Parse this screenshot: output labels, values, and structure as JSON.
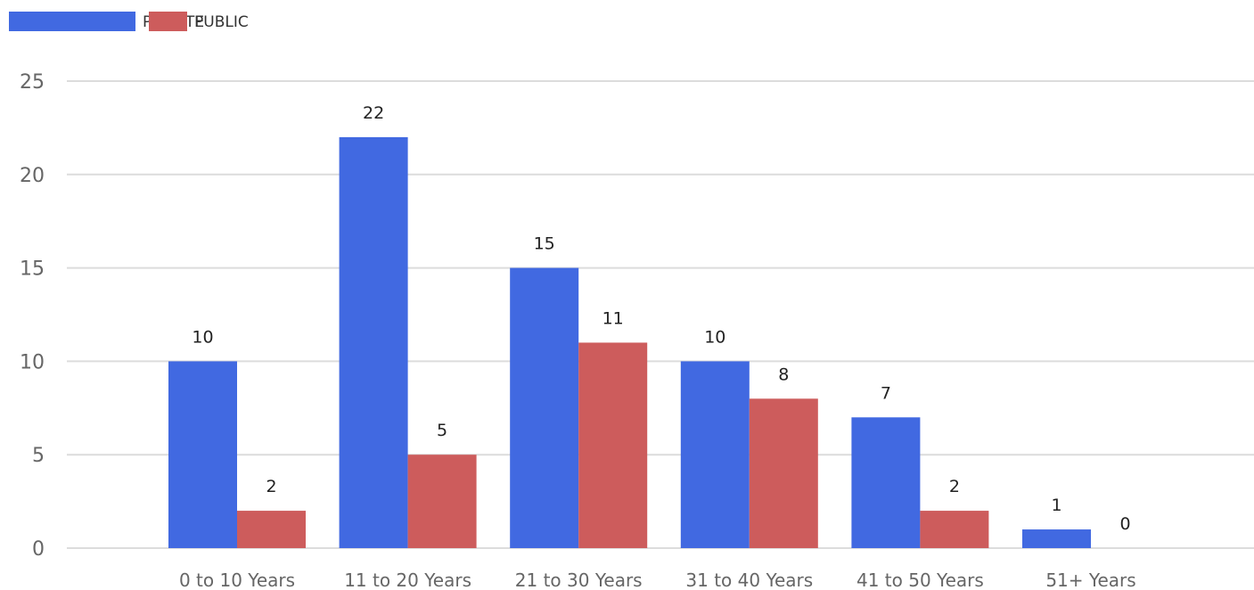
{
  "chart_data": {
    "type": "bar",
    "categories": [
      "0 to 10 Years",
      "11 to 20 Years",
      "21 to 30 Years",
      "31 to 40 Years",
      "41 to 50 Years",
      "51+ Years"
    ],
    "series": [
      {
        "name": "PRIVATE",
        "color": "#4169e1",
        "values": [
          10,
          22,
          15,
          10,
          7,
          1
        ]
      },
      {
        "name": "PUBLIC",
        "color": "#cd5c5c",
        "values": [
          2,
          5,
          11,
          8,
          2,
          0
        ]
      }
    ],
    "ylim": [
      0,
      25
    ],
    "yticks": [
      "0",
      "5",
      "10",
      "15",
      "20",
      "25"
    ],
    "grid": true,
    "legend_position": "top-left",
    "data_labels": true
  }
}
